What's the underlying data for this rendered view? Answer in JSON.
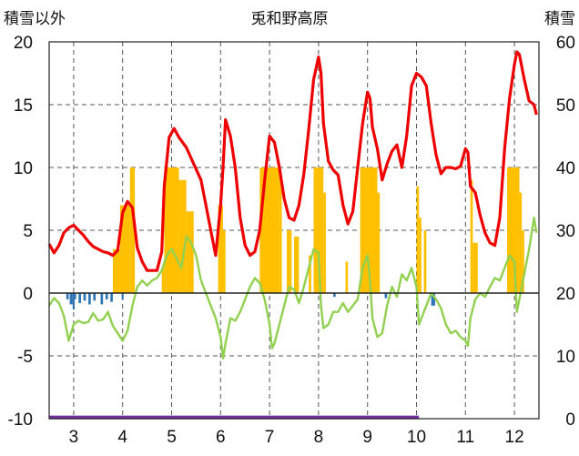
{
  "chart_data": {
    "type": "line",
    "title": "兎和野高原",
    "left_axis_label": "積雪以外",
    "right_axis_label": "積雪",
    "ylim_left": [
      -10,
      20
    ],
    "ylim_right": [
      0,
      60
    ],
    "left_ticks": [
      "20",
      "15",
      "10",
      "5",
      "0",
      "-5",
      "-10"
    ],
    "right_ticks": [
      "60",
      "50",
      "40",
      "30",
      "20",
      "10",
      "0"
    ],
    "x_ticks": [
      "3",
      "4",
      "5",
      "6",
      "7",
      "8",
      "9",
      "10",
      "11",
      "12"
    ],
    "xlim": [
      2.5,
      12.5
    ],
    "grid": "dashed-vertical-at-month-ticks, dashed-horizontal",
    "colors": {
      "red_series": "#ee0000",
      "green_series": "#92d050",
      "orange_bars": "#ffc000",
      "blue_bars": "#2e75b6",
      "purple_line": "#7030a0"
    },
    "series": [
      {
        "color": "red",
        "axis": "left",
        "points": [
          [
            2.5,
            3.9
          ],
          [
            2.6,
            3.2
          ],
          [
            2.7,
            3.8
          ],
          [
            2.8,
            4.8
          ],
          [
            2.9,
            5.2
          ],
          [
            3.0,
            5.4
          ],
          [
            3.1,
            5.0
          ],
          [
            3.2,
            4.6
          ],
          [
            3.3,
            4.1
          ],
          [
            3.4,
            3.7
          ],
          [
            3.5,
            3.5
          ],
          [
            3.6,
            3.3
          ],
          [
            3.7,
            3.2
          ],
          [
            3.8,
            3.0
          ],
          [
            3.9,
            3.4
          ],
          [
            4.0,
            6.4
          ],
          [
            4.1,
            7.3
          ],
          [
            4.2,
            6.8
          ],
          [
            4.3,
            3.6
          ],
          [
            4.4,
            2.5
          ],
          [
            4.5,
            1.8
          ],
          [
            4.6,
            1.8
          ],
          [
            4.7,
            1.8
          ],
          [
            4.8,
            3.3
          ],
          [
            4.85,
            8.5
          ],
          [
            4.95,
            12.4
          ],
          [
            5.05,
            13.1
          ],
          [
            5.15,
            12.4
          ],
          [
            5.3,
            11.6
          ],
          [
            5.45,
            10.3
          ],
          [
            5.6,
            9.0
          ],
          [
            5.7,
            7.0
          ],
          [
            5.8,
            5.0
          ],
          [
            5.9,
            3.0
          ],
          [
            6.0,
            7.0
          ],
          [
            6.05,
            10.0
          ],
          [
            6.1,
            13.8
          ],
          [
            6.2,
            12.5
          ],
          [
            6.3,
            10.0
          ],
          [
            6.4,
            6.0
          ],
          [
            6.5,
            3.8
          ],
          [
            6.6,
            3.0
          ],
          [
            6.7,
            3.3
          ],
          [
            6.8,
            5.0
          ],
          [
            6.9,
            9.0
          ],
          [
            7.0,
            12.5
          ],
          [
            7.1,
            12.0
          ],
          [
            7.2,
            10.0
          ],
          [
            7.3,
            7.5
          ],
          [
            7.4,
            6.0
          ],
          [
            7.5,
            5.8
          ],
          [
            7.6,
            7.0
          ],
          [
            7.7,
            9.5
          ],
          [
            7.8,
            13.0
          ],
          [
            7.9,
            17.0
          ],
          [
            8.0,
            18.8
          ],
          [
            8.05,
            17.5
          ],
          [
            8.1,
            13.5
          ],
          [
            8.2,
            10.5
          ],
          [
            8.3,
            9.8
          ],
          [
            8.4,
            9.4
          ],
          [
            8.5,
            7.0
          ],
          [
            8.6,
            5.5
          ],
          [
            8.7,
            6.5
          ],
          [
            8.8,
            10.0
          ],
          [
            8.9,
            13.5
          ],
          [
            9.0,
            16.0
          ],
          [
            9.05,
            15.5
          ],
          [
            9.1,
            13.2
          ],
          [
            9.2,
            11.5
          ],
          [
            9.3,
            9.0
          ],
          [
            9.4,
            10.3
          ],
          [
            9.5,
            11.3
          ],
          [
            9.6,
            11.8
          ],
          [
            9.7,
            10.0
          ],
          [
            9.8,
            12.5
          ],
          [
            9.9,
            16.5
          ],
          [
            10.0,
            17.5
          ],
          [
            10.1,
            17.2
          ],
          [
            10.2,
            16.5
          ],
          [
            10.3,
            13.5
          ],
          [
            10.4,
            11.0
          ],
          [
            10.5,
            9.5
          ],
          [
            10.6,
            10.0
          ],
          [
            10.7,
            10.0
          ],
          [
            10.8,
            9.9
          ],
          [
            10.9,
            10.1
          ],
          [
            11.0,
            11.5
          ],
          [
            11.05,
            11.2
          ],
          [
            11.1,
            8.5
          ],
          [
            11.2,
            8.0
          ],
          [
            11.3,
            6.2
          ],
          [
            11.4,
            4.8
          ],
          [
            11.5,
            4.0
          ],
          [
            11.6,
            3.8
          ],
          [
            11.7,
            6.0
          ],
          [
            11.8,
            11.5
          ],
          [
            11.9,
            15.5
          ],
          [
            12.0,
            18.2
          ],
          [
            12.05,
            19.2
          ],
          [
            12.1,
            19.0
          ],
          [
            12.2,
            17.0
          ],
          [
            12.3,
            15.3
          ],
          [
            12.4,
            15.0
          ],
          [
            12.45,
            14.2
          ]
        ]
      },
      {
        "color": "green",
        "axis": "left",
        "points": [
          [
            2.5,
            -1.0
          ],
          [
            2.6,
            -0.4
          ],
          [
            2.7,
            -0.8
          ],
          [
            2.8,
            -1.8
          ],
          [
            2.9,
            -3.8
          ],
          [
            3.0,
            -2.5
          ],
          [
            3.1,
            -2.2
          ],
          [
            3.2,
            -2.4
          ],
          [
            3.3,
            -2.3
          ],
          [
            3.4,
            -1.6
          ],
          [
            3.5,
            -2.2
          ],
          [
            3.6,
            -2.1
          ],
          [
            3.7,
            -1.5
          ],
          [
            3.8,
            -2.6
          ],
          [
            3.9,
            -3.2
          ],
          [
            4.0,
            -3.8
          ],
          [
            4.1,
            -3.0
          ],
          [
            4.2,
            -1.0
          ],
          [
            4.3,
            0.5
          ],
          [
            4.4,
            1.0
          ],
          [
            4.5,
            0.6
          ],
          [
            4.6,
            1.0
          ],
          [
            4.7,
            1.2
          ],
          [
            4.8,
            1.8
          ],
          [
            4.9,
            3.0
          ],
          [
            5.0,
            3.5
          ],
          [
            5.1,
            2.8
          ],
          [
            5.2,
            2.0
          ],
          [
            5.3,
            4.5
          ],
          [
            5.4,
            4.0
          ],
          [
            5.5,
            3.0
          ],
          [
            5.6,
            1.0
          ],
          [
            5.7,
            0.0
          ],
          [
            5.8,
            -1.0
          ],
          [
            5.9,
            -2.0
          ],
          [
            6.0,
            -3.5
          ],
          [
            6.05,
            -5.2
          ],
          [
            6.1,
            -4.0
          ],
          [
            6.2,
            -2.0
          ],
          [
            6.3,
            -2.2
          ],
          [
            6.4,
            -1.5
          ],
          [
            6.5,
            -0.5
          ],
          [
            6.6,
            0.5
          ],
          [
            6.7,
            1.2
          ],
          [
            6.8,
            0.8
          ],
          [
            6.9,
            -0.5
          ],
          [
            7.0,
            -2.5
          ],
          [
            7.05,
            -4.4
          ],
          [
            7.1,
            -4.0
          ],
          [
            7.2,
            -2.5
          ],
          [
            7.3,
            -1.0
          ],
          [
            7.4,
            0.5
          ],
          [
            7.5,
            0.3
          ],
          [
            7.6,
            -0.8
          ],
          [
            7.7,
            0.5
          ],
          [
            7.8,
            2.0
          ],
          [
            7.9,
            3.5
          ],
          [
            8.0,
            3.2
          ],
          [
            8.05,
            -1.0
          ],
          [
            8.1,
            -2.8
          ],
          [
            8.2,
            -2.5
          ],
          [
            8.3,
            -1.5
          ],
          [
            8.4,
            -1.5
          ],
          [
            8.5,
            -0.8
          ],
          [
            8.6,
            -1.5
          ],
          [
            8.7,
            -1.0
          ],
          [
            8.8,
            -0.5
          ],
          [
            8.9,
            2.0
          ],
          [
            9.0,
            3.0
          ],
          [
            9.05,
            1.0
          ],
          [
            9.1,
            -2.0
          ],
          [
            9.2,
            -3.5
          ],
          [
            9.3,
            -3.2
          ],
          [
            9.4,
            -1.0
          ],
          [
            9.5,
            0.5
          ],
          [
            9.6,
            -0.3
          ],
          [
            9.7,
            1.5
          ],
          [
            9.8,
            1.0
          ],
          [
            9.9,
            2.0
          ],
          [
            10.0,
            0.5
          ],
          [
            10.05,
            -2.5
          ],
          [
            10.1,
            -2.0
          ],
          [
            10.2,
            -1.0
          ],
          [
            10.3,
            0.0
          ],
          [
            10.4,
            -0.5
          ],
          [
            10.5,
            -1.2
          ],
          [
            10.6,
            -2.5
          ],
          [
            10.7,
            -3.2
          ],
          [
            10.8,
            -3.0
          ],
          [
            10.9,
            -3.5
          ],
          [
            11.0,
            -3.8
          ],
          [
            11.05,
            -4.2
          ],
          [
            11.1,
            -2.0
          ],
          [
            11.2,
            -0.5
          ],
          [
            11.3,
            0.0
          ],
          [
            11.4,
            -0.3
          ],
          [
            11.5,
            0.5
          ],
          [
            11.6,
            1.2
          ],
          [
            11.7,
            1.0
          ],
          [
            11.8,
            2.0
          ],
          [
            11.9,
            3.0
          ],
          [
            12.0,
            2.5
          ],
          [
            12.05,
            -1.5
          ],
          [
            12.1,
            -0.5
          ],
          [
            12.2,
            1.5
          ],
          [
            12.3,
            3.5
          ],
          [
            12.4,
            6.0
          ],
          [
            12.45,
            4.8
          ]
        ]
      },
      {
        "color": "purple",
        "axis": "left",
        "points": [
          [
            2.5,
            -9.9
          ],
          [
            10.05,
            -9.9
          ]
        ]
      }
    ],
    "orange_bars": [
      [
        3.8,
        3.95,
        3.5
      ],
      [
        3.95,
        4.15,
        7.0
      ],
      [
        4.15,
        4.25,
        10.0
      ],
      [
        4.8,
        4.85,
        2.0
      ],
      [
        4.85,
        5.15,
        10.0
      ],
      [
        5.15,
        5.3,
        9.0
      ],
      [
        5.3,
        5.45,
        6.5
      ],
      [
        5.95,
        6.05,
        7.0
      ],
      [
        6.05,
        6.1,
        5.0
      ],
      [
        6.8,
        7.2,
        10.0
      ],
      [
        7.2,
        7.25,
        9.5
      ],
      [
        7.35,
        7.45,
        5.0
      ],
      [
        7.5,
        7.6,
        4.5
      ],
      [
        7.8,
        7.85,
        3.0
      ],
      [
        7.9,
        8.1,
        10.0
      ],
      [
        8.1,
        8.15,
        8.0
      ],
      [
        8.55,
        8.6,
        2.5
      ],
      [
        8.85,
        9.2,
        10.0
      ],
      [
        9.2,
        9.25,
        8.0
      ],
      [
        10.0,
        10.05,
        8.5
      ],
      [
        10.05,
        10.1,
        6.0
      ],
      [
        10.15,
        10.2,
        5.0
      ],
      [
        11.1,
        11.15,
        9.0
      ],
      [
        11.15,
        11.25,
        4.0
      ],
      [
        11.85,
        12.1,
        10.0
      ],
      [
        12.1,
        12.15,
        8.0
      ],
      [
        12.15,
        12.2,
        5.0
      ]
    ],
    "blue_bars": [
      [
        2.85,
        2.9,
        -0.5
      ],
      [
        2.92,
        2.98,
        -0.9
      ],
      [
        2.98,
        3.02,
        -1.3
      ],
      [
        3.02,
        3.05,
        -0.5
      ],
      [
        3.1,
        3.15,
        -0.8
      ],
      [
        3.2,
        3.25,
        -0.6
      ],
      [
        3.3,
        3.35,
        -0.9
      ],
      [
        3.4,
        3.45,
        -0.6
      ],
      [
        3.55,
        3.6,
        -0.9
      ],
      [
        3.65,
        3.7,
        -0.5
      ],
      [
        3.75,
        3.8,
        -0.7
      ],
      [
        3.98,
        4.02,
        -0.5
      ],
      [
        8.3,
        8.35,
        -0.3
      ],
      [
        9.35,
        9.4,
        -0.4
      ],
      [
        10.3,
        10.38,
        -1.0
      ]
    ]
  }
}
